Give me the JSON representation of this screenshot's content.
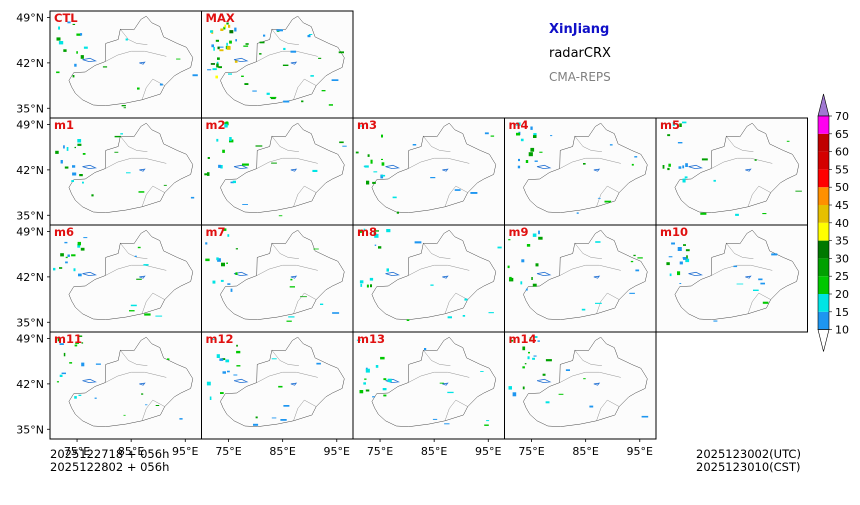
{
  "header": {
    "region": "XinJiang",
    "product": "radarCRX",
    "model": "CMA-REPS",
    "region_color": "#1010c8",
    "model_color": "#808080"
  },
  "footer": {
    "init_utc": "2025122718  +  056h",
    "init_cst": "2025122802  +  056h",
    "valid_utc": "2025123002(UTC)",
    "valid_cst": "2025123010(CST)"
  },
  "chart_data": {
    "type": "heatmap",
    "title": "XinJiang radarCRX CMA-REPS",
    "variable": "radarCRX",
    "panels": [
      "CTL",
      "MAX",
      "m1",
      "m2",
      "m3",
      "m4",
      "m5",
      "m6",
      "m7",
      "m8",
      "m9",
      "m10",
      "m11",
      "m12",
      "m13",
      "m14"
    ],
    "panel_label_color": "#e01010",
    "x_ticks": [
      "75°E",
      "85°E",
      "95°E"
    ],
    "y_ticks": [
      "49°N",
      "42°N",
      "35°N"
    ],
    "x_tick_values": [
      75,
      85,
      95
    ],
    "y_tick_values": [
      49,
      42,
      35
    ],
    "xlim": [
      70,
      98
    ],
    "ylim": [
      33.5,
      50
    ],
    "colorbar": {
      "levels": [
        10,
        15,
        20,
        25,
        30,
        35,
        40,
        45,
        50,
        55,
        60,
        65,
        70
      ],
      "colors": [
        "#1e96f0",
        "#00e4e4",
        "#00c800",
        "#00a000",
        "#007800",
        "#ffff00",
        "#e6c000",
        "#ff9000",
        "#ff0000",
        "#d40000",
        "#c00000",
        "#ff00f0",
        "#9600b4",
        "#a078d2"
      ],
      "extend": "both"
    }
  }
}
